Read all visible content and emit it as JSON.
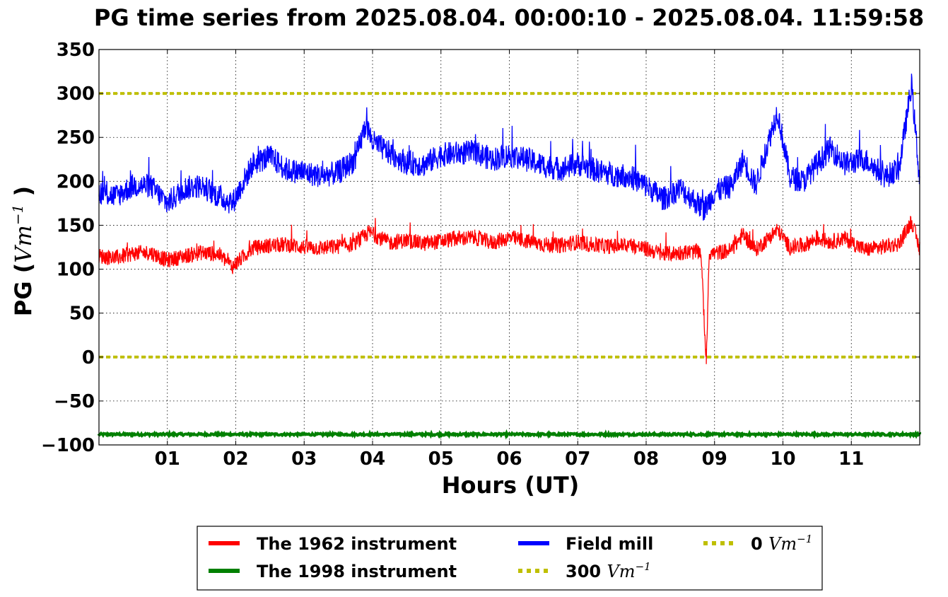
{
  "chart_data": {
    "type": "line",
    "title": "PG time series from 2025.08.04. 00:00:10 - 2025.08.04. 11:59:58",
    "xlabel": "Hours (UT)",
    "ylabel": "PG",
    "ylabel_unit": "Vm",
    "ylabel_unit_exp": "−1",
    "xlim": [
      0,
      12
    ],
    "ylim": [
      -100,
      350
    ],
    "grid": true,
    "legend_position": "bottom",
    "x_ticks": [
      1,
      2,
      3,
      4,
      5,
      6,
      7,
      8,
      9,
      10,
      11
    ],
    "x_tick_labels": [
      "01",
      "02",
      "03",
      "04",
      "05",
      "06",
      "07",
      "08",
      "09",
      "10",
      "11"
    ],
    "y_ticks": [
      -100,
      -50,
      0,
      50,
      100,
      150,
      200,
      250,
      300,
      350
    ],
    "y_tick_labels": [
      "−100",
      "−50",
      "0",
      "50",
      "100",
      "150",
      "200",
      "250",
      "300",
      "350"
    ],
    "series": [
      {
        "name": "The 1962 instrument",
        "color": "#ff0000",
        "style": "solid",
        "x": [
          0,
          0.25,
          0.5,
          0.75,
          1.0,
          1.25,
          1.5,
          1.75,
          1.95,
          2.25,
          2.5,
          2.75,
          3.0,
          3.25,
          3.5,
          3.75,
          3.95,
          4.25,
          4.5,
          4.75,
          5.0,
          5.25,
          5.5,
          5.75,
          6.0,
          6.25,
          6.5,
          6.75,
          7.0,
          7.25,
          7.5,
          7.75,
          8.0,
          8.25,
          8.5,
          8.8,
          8.88,
          8.92,
          9.0,
          9.25,
          9.42,
          9.6,
          9.92,
          10.1,
          10.3,
          10.5,
          10.7,
          10.9,
          11.2,
          11.5,
          11.7,
          11.88,
          12.0
        ],
        "y": [
          115,
          113,
          118,
          119,
          110,
          115,
          119,
          117,
          103,
          124,
          127,
          128,
          125,
          124,
          126,
          129,
          142,
          130,
          133,
          129,
          132,
          135,
          136,
          130,
          136,
          132,
          128,
          127,
          131,
          127,
          126,
          128,
          123,
          117,
          119,
          120,
          -8,
          118,
          118,
          122,
          140,
          122,
          145,
          125,
          127,
          135,
          131,
          135,
          122,
          126,
          129,
          155,
          122
        ]
      },
      {
        "name": "The 1998 instrument",
        "color": "#008000",
        "style": "solid",
        "x": [
          0,
          12
        ],
        "y": [
          -88,
          -88
        ]
      },
      {
        "name": "Field mill",
        "color": "#0000ff",
        "style": "solid",
        "x": [
          0,
          0.25,
          0.5,
          0.75,
          1.0,
          1.25,
          1.5,
          1.75,
          1.95,
          2.25,
          2.5,
          2.75,
          3.0,
          3.25,
          3.5,
          3.75,
          3.9,
          4.0,
          4.25,
          4.5,
          4.75,
          5.0,
          5.25,
          5.5,
          5.75,
          6.0,
          6.25,
          6.5,
          6.75,
          7.0,
          7.25,
          7.5,
          7.75,
          8.0,
          8.25,
          8.5,
          8.85,
          9.0,
          9.25,
          9.42,
          9.6,
          9.92,
          10.1,
          10.3,
          10.5,
          10.7,
          10.9,
          11.2,
          11.5,
          11.7,
          11.88,
          12.0
        ],
        "y": [
          188,
          183,
          195,
          195,
          175,
          192,
          195,
          183,
          175,
          220,
          228,
          213,
          210,
          206,
          210,
          225,
          265,
          245,
          232,
          221,
          219,
          230,
          232,
          233,
          225,
          230,
          225,
          218,
          214,
          220,
          213,
          208,
          206,
          195,
          180,
          192,
          168,
          188,
          195,
          225,
          195,
          280,
          205,
          200,
          220,
          238,
          220,
          225,
          205,
          215,
          310,
          200
        ]
      }
    ],
    "reference_lines": [
      {
        "name": "300",
        "value": 300,
        "color": "#bfbf00",
        "style": "dotted"
      },
      {
        "name": "0",
        "value": 0,
        "color": "#bfbf00",
        "style": "dotted"
      }
    ],
    "legend": {
      "entries": [
        {
          "label": "The 1962 instrument",
          "color": "#ff0000",
          "style": "solid"
        },
        {
          "label": "The 1998 instrument",
          "color": "#008000",
          "style": "solid"
        },
        {
          "label": "Field mill",
          "color": "#0000ff",
          "style": "solid"
        },
        {
          "label": "300",
          "unit": "Vm",
          "unit_exp": "−1",
          "color": "#bfbf00",
          "style": "dotted"
        },
        {
          "label": "0",
          "unit": "Vm",
          "unit_exp": "−1",
          "color": "#bfbf00",
          "style": "dotted"
        }
      ]
    }
  }
}
